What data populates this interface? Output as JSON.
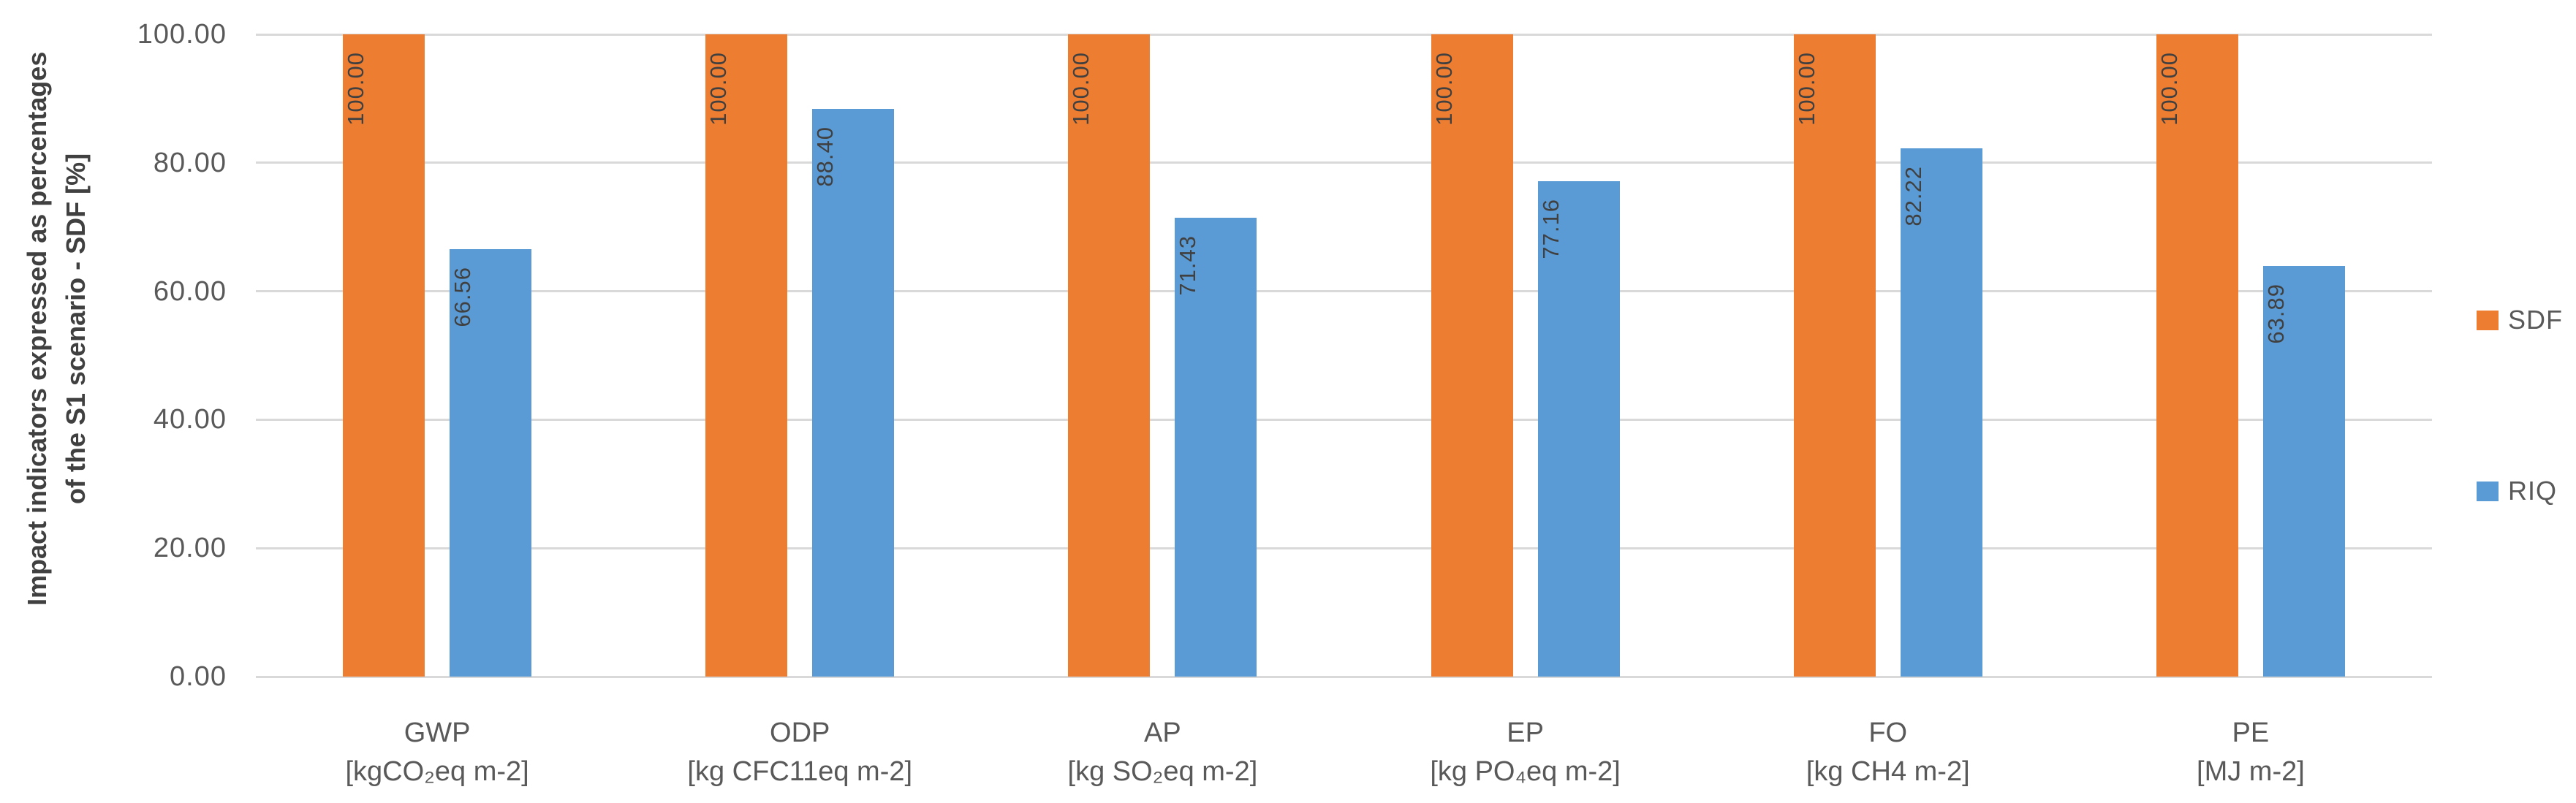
{
  "chart_data": {
    "type": "bar",
    "title": "",
    "y_axis_title_lines": [
      "Impact indicators expressed as percentages",
      "of the S1 scenario - SDF [%]"
    ],
    "categories": [
      "GWP",
      "ODP",
      "AP",
      "EP",
      "FO",
      "PE"
    ],
    "category_units": [
      "[kgCO₂eq m-2]",
      "[kg CFC11eq m-2]",
      "[kg SO₂eq m-2]",
      "[kg PO₄eq m-2]",
      "[kg CH4 m-2]",
      "[MJ m-2]"
    ],
    "series": [
      {
        "name": "SDF",
        "color": "#ED7D31",
        "values": [
          100.0,
          100.0,
          100.0,
          100.0,
          100.0,
          100.0
        ]
      },
      {
        "name": "RIQ",
        "color": "#5B9BD5",
        "values": [
          66.56,
          88.4,
          71.43,
          77.16,
          82.22,
          63.89
        ]
      }
    ],
    "y_ticks": [
      100,
      80,
      60,
      40,
      20,
      0
    ],
    "y_tick_labels": [
      "100.00",
      "80.00",
      "60.00",
      "40.00",
      "20.00",
      "0.00"
    ],
    "ylim": [
      0,
      100
    ],
    "grid": true,
    "legend_position": "right"
  },
  "colors": {
    "background": "#FFFFFF",
    "gridline": "#D9D9D9",
    "axis_text": "#595959",
    "title_text": "#404040",
    "data_label_text": "#404040",
    "sdf_bar": "#ED7D31",
    "riq_bar": "#5B9BD5"
  }
}
